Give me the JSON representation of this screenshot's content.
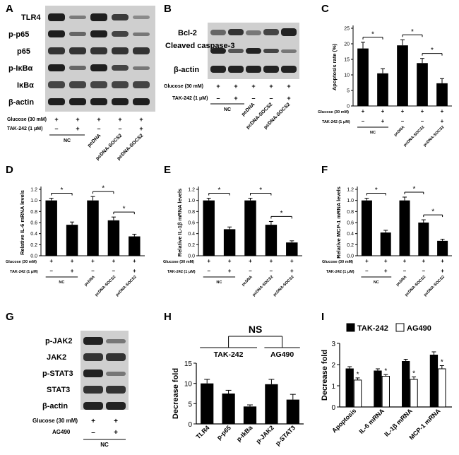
{
  "panels": {
    "A": {
      "letter": "A",
      "bands": [
        "TLR4",
        "p-p65",
        "p65",
        "p-IκBα",
        "IκBα",
        "β-actin"
      ],
      "treat_rows": [
        {
          "label": "Glucose (30 mM)",
          "signs": [
            "+",
            "+",
            "+",
            "+",
            "+"
          ]
        },
        {
          "label": "TAK-242 (1 μM)",
          "signs": [
            "–",
            "+",
            "–",
            "–",
            "+"
          ]
        }
      ],
      "groups": [
        "NC",
        "pcDNA",
        "pcDNA-SOCS2",
        "pcDNA-SOCS2"
      ]
    },
    "B": {
      "letter": "B",
      "bands": [
        "Bcl-2",
        "Cleaved caspase-3",
        "β-actin"
      ],
      "treat_rows": [
        {
          "label": "Glucose (30 mM)",
          "signs": [
            "+",
            "+",
            "+",
            "+",
            "+"
          ]
        },
        {
          "label": "TAK-242 (1 μM)",
          "signs": [
            "–",
            "+",
            "–",
            "–",
            "+"
          ]
        }
      ],
      "groups": [
        "NC",
        "pcDNA",
        "pcDNA-SOCS2",
        "pcDNA-SOCS2"
      ]
    },
    "G": {
      "letter": "G",
      "bands": [
        "p-JAK2",
        "JAK2",
        "p-STAT3",
        "STAT3",
        "β-actin"
      ],
      "treat_rows": [
        {
          "label": "Glucose (30 mM)",
          "signs": [
            "+",
            "+"
          ]
        },
        {
          "label": "AG490",
          "signs": [
            "–",
            "+"
          ]
        }
      ],
      "groups": [
        "NC"
      ]
    }
  },
  "bar_treatments": {
    "rows": [
      {
        "label": "Glucose (30 mM)",
        "signs": [
          "+",
          "+",
          "+",
          "+",
          "+"
        ]
      },
      {
        "label": "TAK-242 (1 μM)",
        "signs": [
          "–",
          "+",
          "–",
          "–",
          "+"
        ]
      }
    ],
    "groups": [
      "NC",
      "pcDNA",
      "pcDNA-SOCS2",
      "pcDNA-SOCS2"
    ]
  },
  "chart_data": [
    {
      "panel": "C",
      "type": "bar",
      "ylabel": "Apoptosis rate (%)",
      "ylim": [
        0,
        25
      ],
      "ticks": [
        0,
        5,
        10,
        15,
        20,
        25
      ],
      "values": [
        18.5,
        10.5,
        19.5,
        13.8,
        7.3
      ],
      "errors": [
        2.0,
        1.5,
        1.8,
        1.5,
        1.5
      ],
      "significance": [
        "*",
        "*",
        "*"
      ]
    },
    {
      "panel": "D",
      "type": "bar",
      "ylabel": "Relative IL-6 mRNA levels",
      "ylim": [
        0,
        1.2
      ],
      "ticks": [
        0.0,
        0.2,
        0.4,
        0.6,
        0.8,
        1.0,
        1.2
      ],
      "values": [
        1.0,
        0.56,
        1.0,
        0.64,
        0.35
      ],
      "errors": [
        0.04,
        0.05,
        0.07,
        0.06,
        0.04
      ],
      "significance": [
        "*",
        "*",
        "*"
      ]
    },
    {
      "panel": "E",
      "type": "bar",
      "ylabel": "Relative IL-1β mRNA levels",
      "ylim": [
        0,
        1.2
      ],
      "ticks": [
        0.0,
        0.2,
        0.4,
        0.6,
        0.8,
        1.0,
        1.2
      ],
      "values": [
        1.0,
        0.48,
        1.0,
        0.56,
        0.24
      ],
      "errors": [
        0.04,
        0.04,
        0.04,
        0.06,
        0.03
      ],
      "significance": [
        "*",
        "*",
        "*"
      ]
    },
    {
      "panel": "F",
      "type": "bar",
      "ylabel": "Relative MCP-1 mRNA levels",
      "ylim": [
        0,
        1.2
      ],
      "ticks": [
        0.0,
        0.2,
        0.4,
        0.6,
        0.8,
        1.0,
        1.2
      ],
      "values": [
        1.0,
        0.42,
        1.0,
        0.6,
        0.27
      ],
      "errors": [
        0.04,
        0.04,
        0.06,
        0.05,
        0.03
      ],
      "significance": [
        "*",
        "*",
        "*"
      ]
    },
    {
      "panel": "H",
      "type": "bar",
      "ylabel": "Decrease fold",
      "ylim": [
        0,
        15
      ],
      "ticks": [
        0,
        5,
        10,
        15
      ],
      "categories": [
        "TLR4",
        "p-p65",
        "p-IkBa",
        "p-JAK2",
        "p-STAT3"
      ],
      "values": [
        10.0,
        7.5,
        4.3,
        9.8,
        6.0
      ],
      "errors": [
        1.0,
        0.8,
        0.4,
        1.2,
        1.3
      ],
      "group_labels": [
        "TAK-242",
        "AG490"
      ],
      "bracket_label": "NS"
    },
    {
      "panel": "I",
      "type": "bar",
      "ylabel": "Decrease fold",
      "ylim": [
        0,
        3
      ],
      "ticks": [
        0,
        1,
        2,
        3
      ],
      "categories": [
        "Apoptosis",
        "IL-6 mRNA",
        "IL-1β mRNA",
        "MCP-1 mRNA"
      ],
      "series": [
        {
          "name": "TAK-242",
          "values": [
            1.8,
            1.7,
            2.15,
            2.45
          ],
          "errors": [
            0.1,
            0.1,
            0.1,
            0.15
          ],
          "color": "#000000"
        },
        {
          "name": "AG490",
          "values": [
            1.27,
            1.45,
            1.3,
            1.8
          ],
          "errors": [
            0.1,
            0.08,
            0.12,
            0.15
          ],
          "color": "#ffffff"
        }
      ],
      "significance": [
        "*",
        "*",
        "*",
        "*"
      ]
    }
  ]
}
